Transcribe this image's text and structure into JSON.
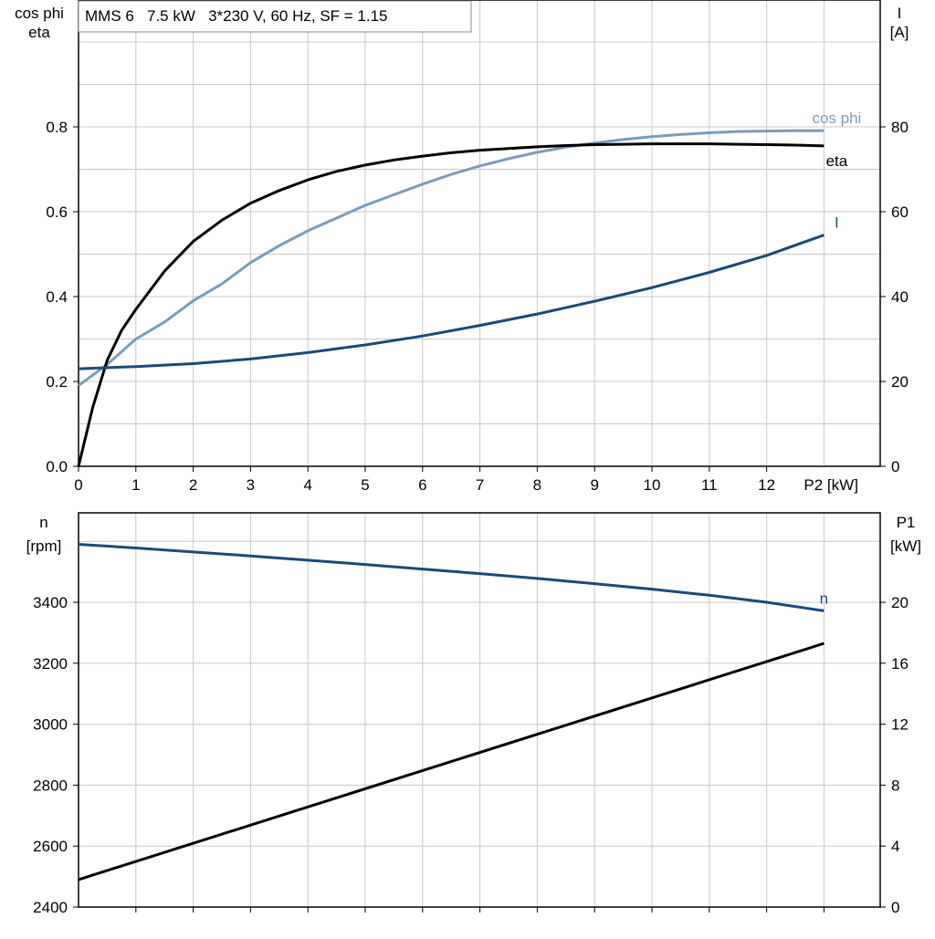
{
  "title": "MMS 6   7.5 kW   3*230 V, 60 Hz, SF = 1.15",
  "chart_data": [
    {
      "type": "line",
      "ylabel_left": [
        "cos phi",
        "eta"
      ],
      "ylabel_right": [
        "I",
        "[A]"
      ],
      "x_ticks": [
        "0",
        "1",
        "2",
        "3",
        "4",
        "5",
        "6",
        "7",
        "8",
        "9",
        "10",
        "11",
        "12",
        "P2 [kW]"
      ],
      "xlim": [
        0,
        14
      ],
      "ylim_left": [
        0,
        1.0
      ],
      "ylim_right": [
        0,
        100
      ],
      "y_ticks_left": [
        "0.0",
        "0.2",
        "0.4",
        "0.6",
        "0.8"
      ],
      "y_ticks_right": [
        "0",
        "20",
        "40",
        "60",
        "80"
      ],
      "grid": true,
      "series": [
        {
          "name": "cos phi",
          "axis": "left",
          "color": "#7a9cbb",
          "x": [
            0,
            0.5,
            1,
            1.5,
            2,
            2.5,
            3,
            3.5,
            4,
            4.5,
            5,
            5.5,
            6,
            6.5,
            7,
            7.5,
            8,
            8.5,
            9,
            9.5,
            10,
            10.5,
            11,
            11.5,
            12,
            12.5,
            13
          ],
          "y": [
            0.19,
            0.24,
            0.3,
            0.34,
            0.39,
            0.43,
            0.48,
            0.52,
            0.555,
            0.585,
            0.615,
            0.64,
            0.665,
            0.688,
            0.708,
            0.725,
            0.74,
            0.752,
            0.762,
            0.77,
            0.777,
            0.782,
            0.786,
            0.789,
            0.79,
            0.791,
            0.791
          ]
        },
        {
          "name": "eta",
          "axis": "left",
          "color": "#000000",
          "x": [
            0,
            0.25,
            0.5,
            0.75,
            1,
            1.5,
            2,
            2.5,
            3,
            3.5,
            4,
            4.5,
            5,
            5.5,
            6,
            6.5,
            7,
            7.5,
            8,
            8.5,
            9,
            9.5,
            10,
            10.5,
            11,
            11.5,
            12,
            12.5,
            13
          ],
          "y": [
            0,
            0.14,
            0.25,
            0.32,
            0.37,
            0.46,
            0.53,
            0.58,
            0.62,
            0.65,
            0.675,
            0.695,
            0.71,
            0.722,
            0.731,
            0.739,
            0.745,
            0.749,
            0.753,
            0.756,
            0.758,
            0.759,
            0.76,
            0.76,
            0.76,
            0.759,
            0.758,
            0.757,
            0.755
          ]
        },
        {
          "name": "I",
          "axis": "right",
          "color": "#1a4a7a",
          "x": [
            0,
            1,
            2,
            3,
            4,
            5,
            6,
            7,
            8,
            9,
            10,
            11,
            12,
            13
          ],
          "y": [
            23,
            23.5,
            24.2,
            25.3,
            26.8,
            28.6,
            30.7,
            33.2,
            35.9,
            38.9,
            42.1,
            45.7,
            49.7,
            54.5
          ]
        }
      ]
    },
    {
      "type": "line",
      "ylabel_left": [
        "n",
        "[rpm]"
      ],
      "ylabel_right": [
        "P1",
        "[kW]"
      ],
      "xlim": [
        0,
        14
      ],
      "ylim_left": [
        2400,
        3700
      ],
      "ylim_right": [
        0,
        26
      ],
      "y_ticks_left": [
        "2400",
        "2600",
        "2800",
        "3000",
        "3200",
        "3400"
      ],
      "y_ticks_right": [
        "0",
        "4",
        "8",
        "12",
        "16",
        "20"
      ],
      "grid": true,
      "series": [
        {
          "name": "n",
          "axis": "left",
          "color": "#1a4a7a",
          "x": [
            0,
            1,
            2,
            3,
            4,
            5,
            6,
            7,
            8,
            9,
            10,
            11,
            12,
            13
          ],
          "y": [
            3590,
            3578,
            3565,
            3552,
            3538,
            3524,
            3509,
            3494,
            3478,
            3461,
            3443,
            3423,
            3400,
            3372
          ]
        },
        {
          "name": "",
          "axis": "right",
          "color": "#000000",
          "x": [
            0,
            13
          ],
          "y": [
            1.8,
            17.3
          ]
        }
      ]
    }
  ]
}
